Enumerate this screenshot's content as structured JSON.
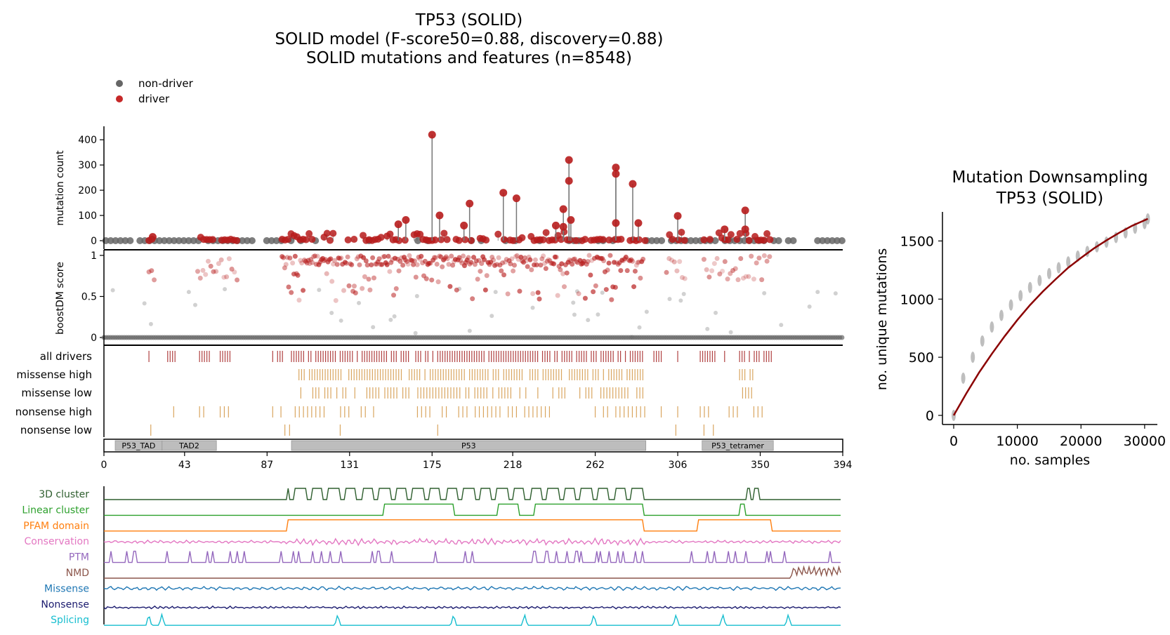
{
  "title_lines": [
    "TP53 (SOLID)",
    "SOLID model (F-score50=0.88, discovery=0.88)",
    "SOLID mutations and features (n=8548)"
  ],
  "legend": [
    {
      "label": "non-driver",
      "color": "#666666"
    },
    {
      "label": "driver",
      "color": "#c62828"
    }
  ],
  "colors": {
    "driver": "#b71c1c",
    "non_driver": "#666666",
    "tick_driver": "#b04040",
    "tick_consequence": "#d9a55f",
    "domain": "#bdbdbd",
    "fit_curve": "#8b0000"
  },
  "chart_data": [
    {
      "type": "scatter",
      "name": "lollipop",
      "ylabel": "mutation count",
      "xlim": [
        0,
        394
      ],
      "ylim": [
        0,
        420
      ],
      "yticks": [
        0,
        100,
        200,
        300,
        400
      ],
      "driver_peaks": [
        {
          "x": 175,
          "y": 420
        },
        {
          "x": 179,
          "y": 100
        },
        {
          "x": 161,
          "y": 82
        },
        {
          "x": 157,
          "y": 65
        },
        {
          "x": 195,
          "y": 147
        },
        {
          "x": 192,
          "y": 60
        },
        {
          "x": 213,
          "y": 190
        },
        {
          "x": 220,
          "y": 168
        },
        {
          "x": 245,
          "y": 125
        },
        {
          "x": 248,
          "y": 320
        },
        {
          "x": 248,
          "y": 237
        },
        {
          "x": 249,
          "y": 82
        },
        {
          "x": 241,
          "y": 60
        },
        {
          "x": 245,
          "y": 55
        },
        {
          "x": 273,
          "y": 290
        },
        {
          "x": 273,
          "y": 265
        },
        {
          "x": 282,
          "y": 225
        },
        {
          "x": 273,
          "y": 70
        },
        {
          "x": 285,
          "y": 70
        },
        {
          "x": 306,
          "y": 98
        },
        {
          "x": 342,
          "y": 120
        },
        {
          "x": 342,
          "y": 45
        },
        {
          "x": 331,
          "y": 45
        },
        {
          "x": 26,
          "y": 15
        }
      ]
    },
    {
      "type": "scatter",
      "name": "boostDM score",
      "ylabel": "boostDM score",
      "xlim": [
        0,
        394
      ],
      "ylim": [
        0,
        1
      ],
      "yticks": [
        0,
        0.5,
        1
      ],
      "ytick_labels": [
        "0",
        "0.5",
        "1"
      ]
    },
    {
      "type": "table",
      "name": "mutation tracks",
      "rows": [
        "all drivers",
        "missense high",
        "missense low",
        "nonsense high",
        "nonsense low"
      ]
    },
    {
      "type": "bar",
      "name": "domains",
      "xlim": [
        0,
        394
      ],
      "xticks": [
        0,
        43,
        87,
        131,
        175,
        218,
        262,
        306,
        350,
        394
      ],
      "domains": [
        {
          "label": "P53_TAD",
          "start": 6,
          "end": 31
        },
        {
          "label": "TAD2",
          "start": 31,
          "end": 60
        },
        {
          "label": "P53",
          "start": 100,
          "end": 289
        },
        {
          "label": "P53_tetramer",
          "start": 319,
          "end": 357
        }
      ]
    },
    {
      "type": "line",
      "name": "features",
      "tracks": [
        {
          "label": "3D cluster",
          "color": "#2e5e2e"
        },
        {
          "label": "Linear cluster",
          "color": "#2ca02c"
        },
        {
          "label": "PFAM domain",
          "color": "#ff7f0e"
        },
        {
          "label": "Conservation",
          "color": "#e377c2"
        },
        {
          "label": "PTM",
          "color": "#9467bd"
        },
        {
          "label": "NMD",
          "color": "#8c564b"
        },
        {
          "label": "Missense",
          "color": "#1f77b4"
        },
        {
          "label": "Nonsense",
          "color": "#1a1a6e"
        },
        {
          "label": "Splicing",
          "color": "#17becf"
        }
      ]
    },
    {
      "type": "line",
      "name": "downsampling",
      "title": [
        "Mutation Downsampling",
        "TP53 (SOLID)"
      ],
      "xlabel": "no. samples",
      "ylabel": "no. unique mutations",
      "xlim": [
        0,
        32000
      ],
      "ylim": [
        0,
        1750
      ],
      "xticks": [
        0,
        10000,
        20000,
        30000
      ],
      "yticks": [
        0,
        500,
        1000,
        1500
      ],
      "x": [
        0,
        1500,
        3000,
        4500,
        6000,
        7500,
        9000,
        10500,
        12000,
        13500,
        15000,
        16500,
        18000,
        19500,
        21000,
        22500,
        24000,
        25500,
        27000,
        28500,
        30000,
        30500
      ],
      "y": [
        0,
        320,
        500,
        640,
        760,
        860,
        950,
        1030,
        1100,
        1160,
        1220,
        1270,
        1320,
        1370,
        1410,
        1450,
        1490,
        1530,
        1570,
        1610,
        1650,
        1690
      ],
      "fit_x": [
        0,
        2000,
        4000,
        6000,
        8000,
        10000,
        12000,
        14000,
        16000,
        18000,
        20000,
        22000,
        24000,
        26000,
        28000,
        30500
      ],
      "fit_y": [
        0,
        190,
        370,
        530,
        680,
        820,
        950,
        1065,
        1170,
        1270,
        1355,
        1435,
        1505,
        1570,
        1630,
        1690
      ]
    }
  ]
}
